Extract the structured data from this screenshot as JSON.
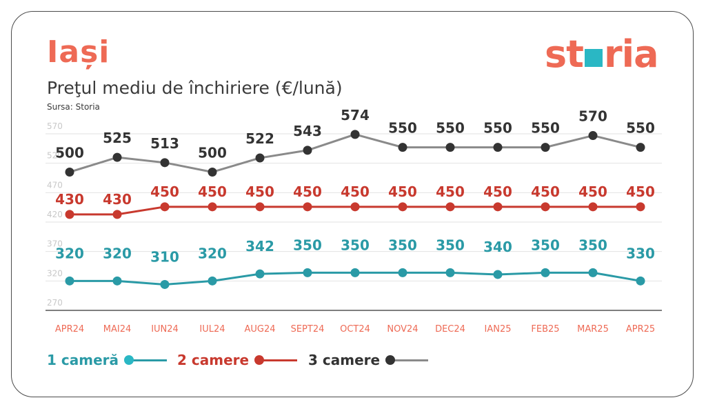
{
  "header": {
    "city": "Iași",
    "subtitle": "Preţul mediu de închiriere (€/lună)",
    "source": "Sursa: Storia",
    "brand_left": "st",
    "brand_right": "ria"
  },
  "colors": {
    "accent": "#ee6a55",
    "one_room": "#2a9aa6",
    "two_rooms": "#c8392e",
    "three_rooms": "#8a8a8a",
    "three_rooms_label": "#333333",
    "grid": "#e2e2e2",
    "axis_text": "#c8c8c8",
    "category_text": "#ee6a55"
  },
  "legend": [
    {
      "label": "1 cameră",
      "color": "#2a9aa6",
      "dot": "#2ab7c4"
    },
    {
      "label": "2 camere",
      "color": "#c8392e",
      "dot": "#c8392e"
    },
    {
      "label": "3 camere",
      "color": "#333333",
      "dot": "#333333"
    }
  ],
  "chart_data": {
    "type": "line",
    "title": "Preţul mediu de închiriere (€/lună)",
    "categories": [
      "APR24",
      "MAI24",
      "IUN24",
      "IUL24",
      "AUG24",
      "SEPT24",
      "OCT24",
      "NOV24",
      "DEC24",
      "IAN25",
      "FEB25",
      "MAR25",
      "APR25"
    ],
    "yticks": [
      270,
      320,
      370,
      420,
      470,
      520,
      570
    ],
    "ylim": [
      270,
      580
    ],
    "grid": true,
    "legend_position": "bottom-left",
    "series": [
      {
        "name": "1 cameră",
        "values": [
          320,
          320,
          310,
          320,
          342,
          350,
          350,
          350,
          350,
          340,
          350,
          350,
          330
        ],
        "points": [
          320,
          320,
          314,
          320,
          332,
          334,
          334,
          334,
          334,
          331,
          334,
          334,
          320
        ]
      },
      {
        "name": "2 camere",
        "values": [
          430,
          430,
          450,
          450,
          450,
          450,
          450,
          450,
          450,
          450,
          450,
          450,
          450
        ],
        "points": [
          433,
          433,
          446,
          446,
          446,
          446,
          446,
          446,
          446,
          446,
          446,
          446,
          446
        ]
      },
      {
        "name": "3 camere",
        "values": [
          500,
          525,
          513,
          500,
          522,
          543,
          574,
          550,
          550,
          550,
          550,
          570,
          550
        ],
        "points": [
          505,
          530,
          521,
          505,
          529,
          542,
          569,
          547,
          547,
          547,
          547,
          567,
          547
        ]
      }
    ]
  }
}
